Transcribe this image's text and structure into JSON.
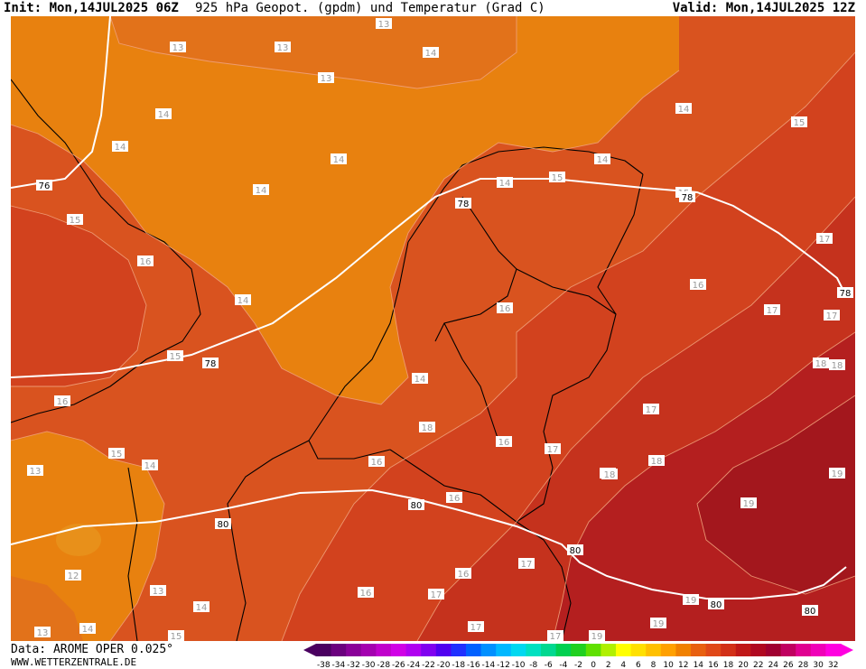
{
  "header": {
    "init": "Init: Mon,14JUL2025 06Z",
    "title": "925 hPa Geopot. (gpdm) und Temperatur (Grad C)",
    "valid": "Valid: Mon,14JUL2025 12Z"
  },
  "footer": {
    "data_source": "Data: AROME OPER 0.025°",
    "website": "WWW.WETTERZENTRALE.DE"
  },
  "colors": {
    "t12": "#e2721a",
    "t14": "#e8810f",
    "t15": "#d9531f",
    "t16": "#d2421e",
    "t17": "#c5321d",
    "t18": "#b41f1f",
    "t19": "#a3171d",
    "isotherm": "#f0a07a",
    "geopotential": "#ffffff",
    "borders": "#000000"
  },
  "legend": {
    "values": [
      "-38",
      "-34",
      "-32",
      "-30",
      "-28",
      "-26",
      "-24",
      "-22",
      "-20",
      "-18",
      "-16",
      "-14",
      "-12",
      "-10",
      "-8",
      "-6",
      "-4",
      "-2",
      "0",
      "2",
      "4",
      "6",
      "8",
      "10",
      "12",
      "14",
      "16",
      "18",
      "20",
      "22",
      "24",
      "26",
      "28",
      "30",
      "32"
    ],
    "colors": [
      "#4a0060",
      "#6b007e",
      "#8a0099",
      "#a400b0",
      "#c000cc",
      "#d000e6",
      "#b000f0",
      "#8000f0",
      "#5000f0",
      "#2030ff",
      "#0060ff",
      "#0090ff",
      "#00b8ff",
      "#00d8f0",
      "#00e0c0",
      "#00d890",
      "#00d050",
      "#20d020",
      "#60e000",
      "#b0f000",
      "#ffff00",
      "#ffe000",
      "#ffc000",
      "#ffa000",
      "#f08000",
      "#e86010",
      "#e04818",
      "#d23018",
      "#c01818",
      "#b00820",
      "#a00030",
      "#c00060",
      "#e00090",
      "#f000b8",
      "#ff00e0"
    ]
  },
  "temperature_labels": [
    {
      "v": "13"
    },
    {
      "v": "13"
    },
    {
      "v": "13"
    },
    {
      "v": "13"
    },
    {
      "v": "14"
    },
    {
      "v": "14"
    },
    {
      "v": "14"
    },
    {
      "v": "14"
    },
    {
      "v": "14"
    },
    {
      "v": "14"
    },
    {
      "v": "14"
    },
    {
      "v": "14"
    },
    {
      "v": "14"
    },
    {
      "v": "15"
    },
    {
      "v": "15"
    },
    {
      "v": "15"
    },
    {
      "v": "15"
    },
    {
      "v": "16"
    },
    {
      "v": "16"
    },
    {
      "v": "16"
    },
    {
      "v": "16"
    },
    {
      "v": "17"
    },
    {
      "v": "17"
    },
    {
      "v": "17"
    },
    {
      "v": "17"
    },
    {
      "v": "18"
    },
    {
      "v": "18"
    },
    {
      "v": "19"
    },
    {
      "v": "19"
    },
    {
      "v": "19"
    },
    {
      "v": "15"
    },
    {
      "v": "15"
    },
    {
      "v": "14"
    },
    {
      "v": "16"
    },
    {
      "v": "16"
    },
    {
      "v": "16"
    },
    {
      "v": "17"
    },
    {
      "v": "17"
    },
    {
      "v": "17"
    },
    {
      "v": "18"
    },
    {
      "v": "18"
    },
    {
      "v": "19"
    },
    {
      "v": "19"
    },
    {
      "v": "13"
    },
    {
      "v": "14"
    },
    {
      "v": "14"
    },
    {
      "v": "12"
    },
    {
      "v": "13"
    },
    {
      "v": "13"
    },
    {
      "v": "14"
    },
    {
      "v": "15"
    },
    {
      "v": "17"
    },
    {
      "v": "16"
    },
    {
      "v": "16"
    },
    {
      "v": "17"
    },
    {
      "v": "18"
    },
    {
      "v": "19"
    }
  ],
  "geopotential_labels": [
    {
      "v": "76"
    },
    {
      "v": "78"
    },
    {
      "v": "78"
    },
    {
      "v": "78"
    },
    {
      "v": "78"
    },
    {
      "v": "80"
    },
    {
      "v": "80"
    },
    {
      "v": "80"
    },
    {
      "v": "80"
    },
    {
      "v": "80"
    }
  ]
}
